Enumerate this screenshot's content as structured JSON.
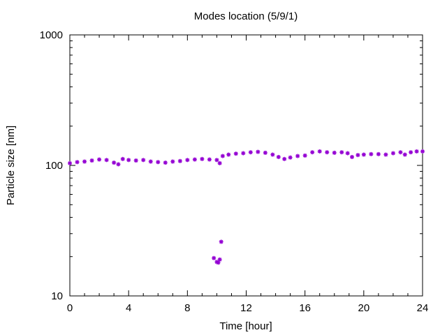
{
  "chart_data": {
    "type": "scatter",
    "title": "Modes location (5/9/1)",
    "xlabel": "Time [hour]",
    "ylabel": "Particle size [nm]",
    "xlim": [
      0,
      24
    ],
    "ylim": [
      10,
      1000
    ],
    "y_scale": "log",
    "x_ticks": [
      "0",
      "4",
      "8",
      "12",
      "16",
      "20",
      "24"
    ],
    "y_ticks": [
      "10",
      "100",
      "1000"
    ],
    "grid": false,
    "marker_color": "#9400d3",
    "series": [
      {
        "points": [
          [
            0.0,
            104
          ],
          [
            0.5,
            106
          ],
          [
            1.0,
            107
          ],
          [
            1.5,
            109
          ],
          [
            2.0,
            111
          ],
          [
            2.5,
            110
          ],
          [
            3.0,
            105
          ],
          [
            3.3,
            102
          ],
          [
            3.6,
            112
          ],
          [
            4.0,
            110
          ],
          [
            4.5,
            109
          ],
          [
            5.0,
            110
          ],
          [
            5.5,
            107
          ],
          [
            6.0,
            106
          ],
          [
            6.5,
            105
          ],
          [
            7.0,
            107
          ],
          [
            7.5,
            108
          ],
          [
            8.0,
            110
          ],
          [
            8.5,
            111
          ],
          [
            9.0,
            112
          ],
          [
            9.5,
            111
          ],
          [
            10.0,
            110
          ],
          [
            10.2,
            104
          ],
          [
            10.4,
            118
          ],
          [
            10.8,
            121
          ],
          [
            11.3,
            123
          ],
          [
            11.8,
            124
          ],
          [
            12.3,
            126
          ],
          [
            12.8,
            127
          ],
          [
            13.3,
            125
          ],
          [
            13.8,
            121
          ],
          [
            14.2,
            116
          ],
          [
            14.6,
            112
          ],
          [
            15.0,
            115
          ],
          [
            15.5,
            118
          ],
          [
            16.0,
            119
          ],
          [
            16.5,
            126
          ],
          [
            17.0,
            128
          ],
          [
            17.5,
            126
          ],
          [
            18.0,
            125
          ],
          [
            18.5,
            126
          ],
          [
            18.9,
            124
          ],
          [
            19.2,
            116
          ],
          [
            19.6,
            120
          ],
          [
            20.0,
            121
          ],
          [
            20.5,
            122
          ],
          [
            21.0,
            122
          ],
          [
            21.5,
            121
          ],
          [
            22.0,
            124
          ],
          [
            22.5,
            126
          ],
          [
            22.8,
            121
          ],
          [
            23.2,
            126
          ],
          [
            23.6,
            128
          ],
          [
            24.0,
            128
          ],
          [
            9.8,
            19.5
          ],
          [
            10.0,
            18.2
          ],
          [
            10.1,
            18.0
          ],
          [
            10.2,
            19.0
          ],
          [
            10.3,
            26.0
          ]
        ]
      }
    ]
  }
}
